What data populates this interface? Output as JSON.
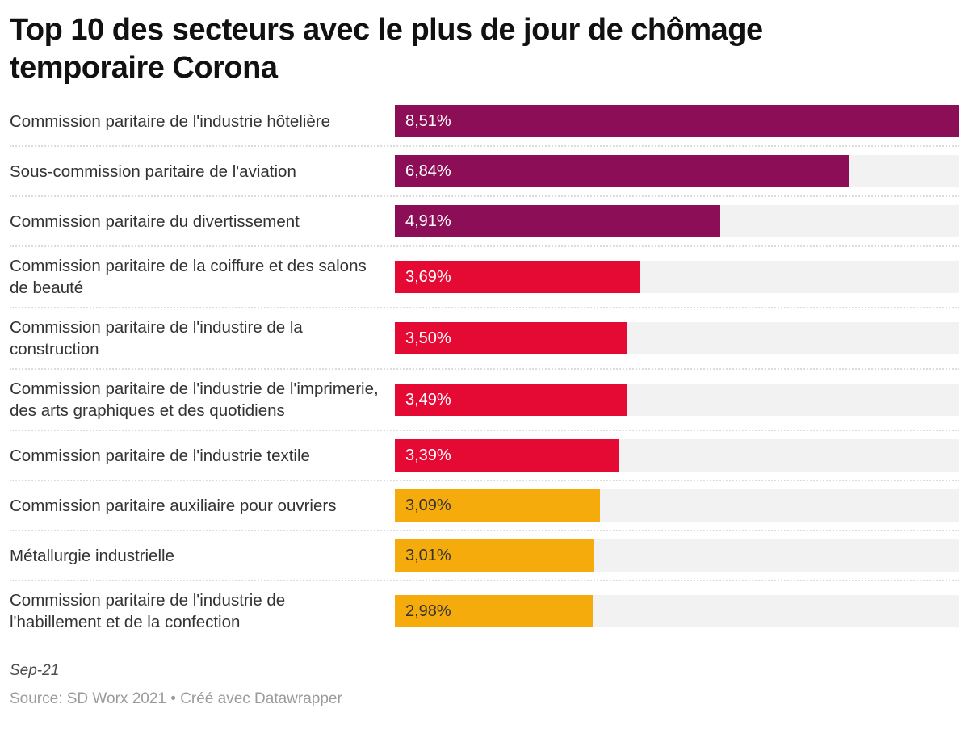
{
  "title": "Top 10 des secteurs avec le plus de jour de chômage temporaire Corona",
  "footer": {
    "note": "Sep-21",
    "source": "Source: SD Worx 2021 • Créé avec Datawrapper"
  },
  "colors": {
    "purple": "#8c0e57",
    "red": "#e50a34",
    "orange": "#f5ab0b",
    "track": "#f2f2f2",
    "value_text_light": "#ffffff",
    "value_text_dark": "#333333",
    "separator": "#dcdcdc"
  },
  "chart_data": {
    "type": "bar",
    "orientation": "horizontal",
    "title": "Top 10 des secteurs avec le plus de jour de chômage temporaire Corona",
    "xlabel": "",
    "ylabel": "",
    "xlim": [
      0,
      8.51
    ],
    "grid": false,
    "legend": false,
    "categories": [
      "Commission paritaire de l'industrie hôtelière",
      "Sous-commission paritaire de l'aviation",
      "Commission paritaire du divertissement",
      "Commission paritaire de la coiffure et des salons de beauté",
      "Commission paritaire de l'industire de la construction",
      "Commission paritaire de l'industrie de l'imprimerie, des arts graphiques et des quotidiens",
      "Commission paritaire de l'industrie textile",
      "Commission paritaire auxiliaire pour ouvriers",
      "Métallurgie industrielle",
      "Commission paritaire de l'industrie de l'habillement et de la confection"
    ],
    "values": [
      8.51,
      6.84,
      4.91,
      3.69,
      3.5,
      3.49,
      3.39,
      3.09,
      3.01,
      2.98
    ],
    "value_labels": [
      "8,51%",
      "6,84%",
      "4,91%",
      "3,69%",
      "3,50%",
      "3,49%",
      "3,39%",
      "3,09%",
      "3,01%",
      "2,98%"
    ],
    "bar_color_names": [
      "purple",
      "purple",
      "purple",
      "red",
      "red",
      "red",
      "red",
      "orange",
      "orange",
      "orange"
    ],
    "value_label_colors": [
      "light",
      "light",
      "light",
      "light",
      "light",
      "light",
      "light",
      "dark",
      "dark",
      "dark"
    ]
  }
}
